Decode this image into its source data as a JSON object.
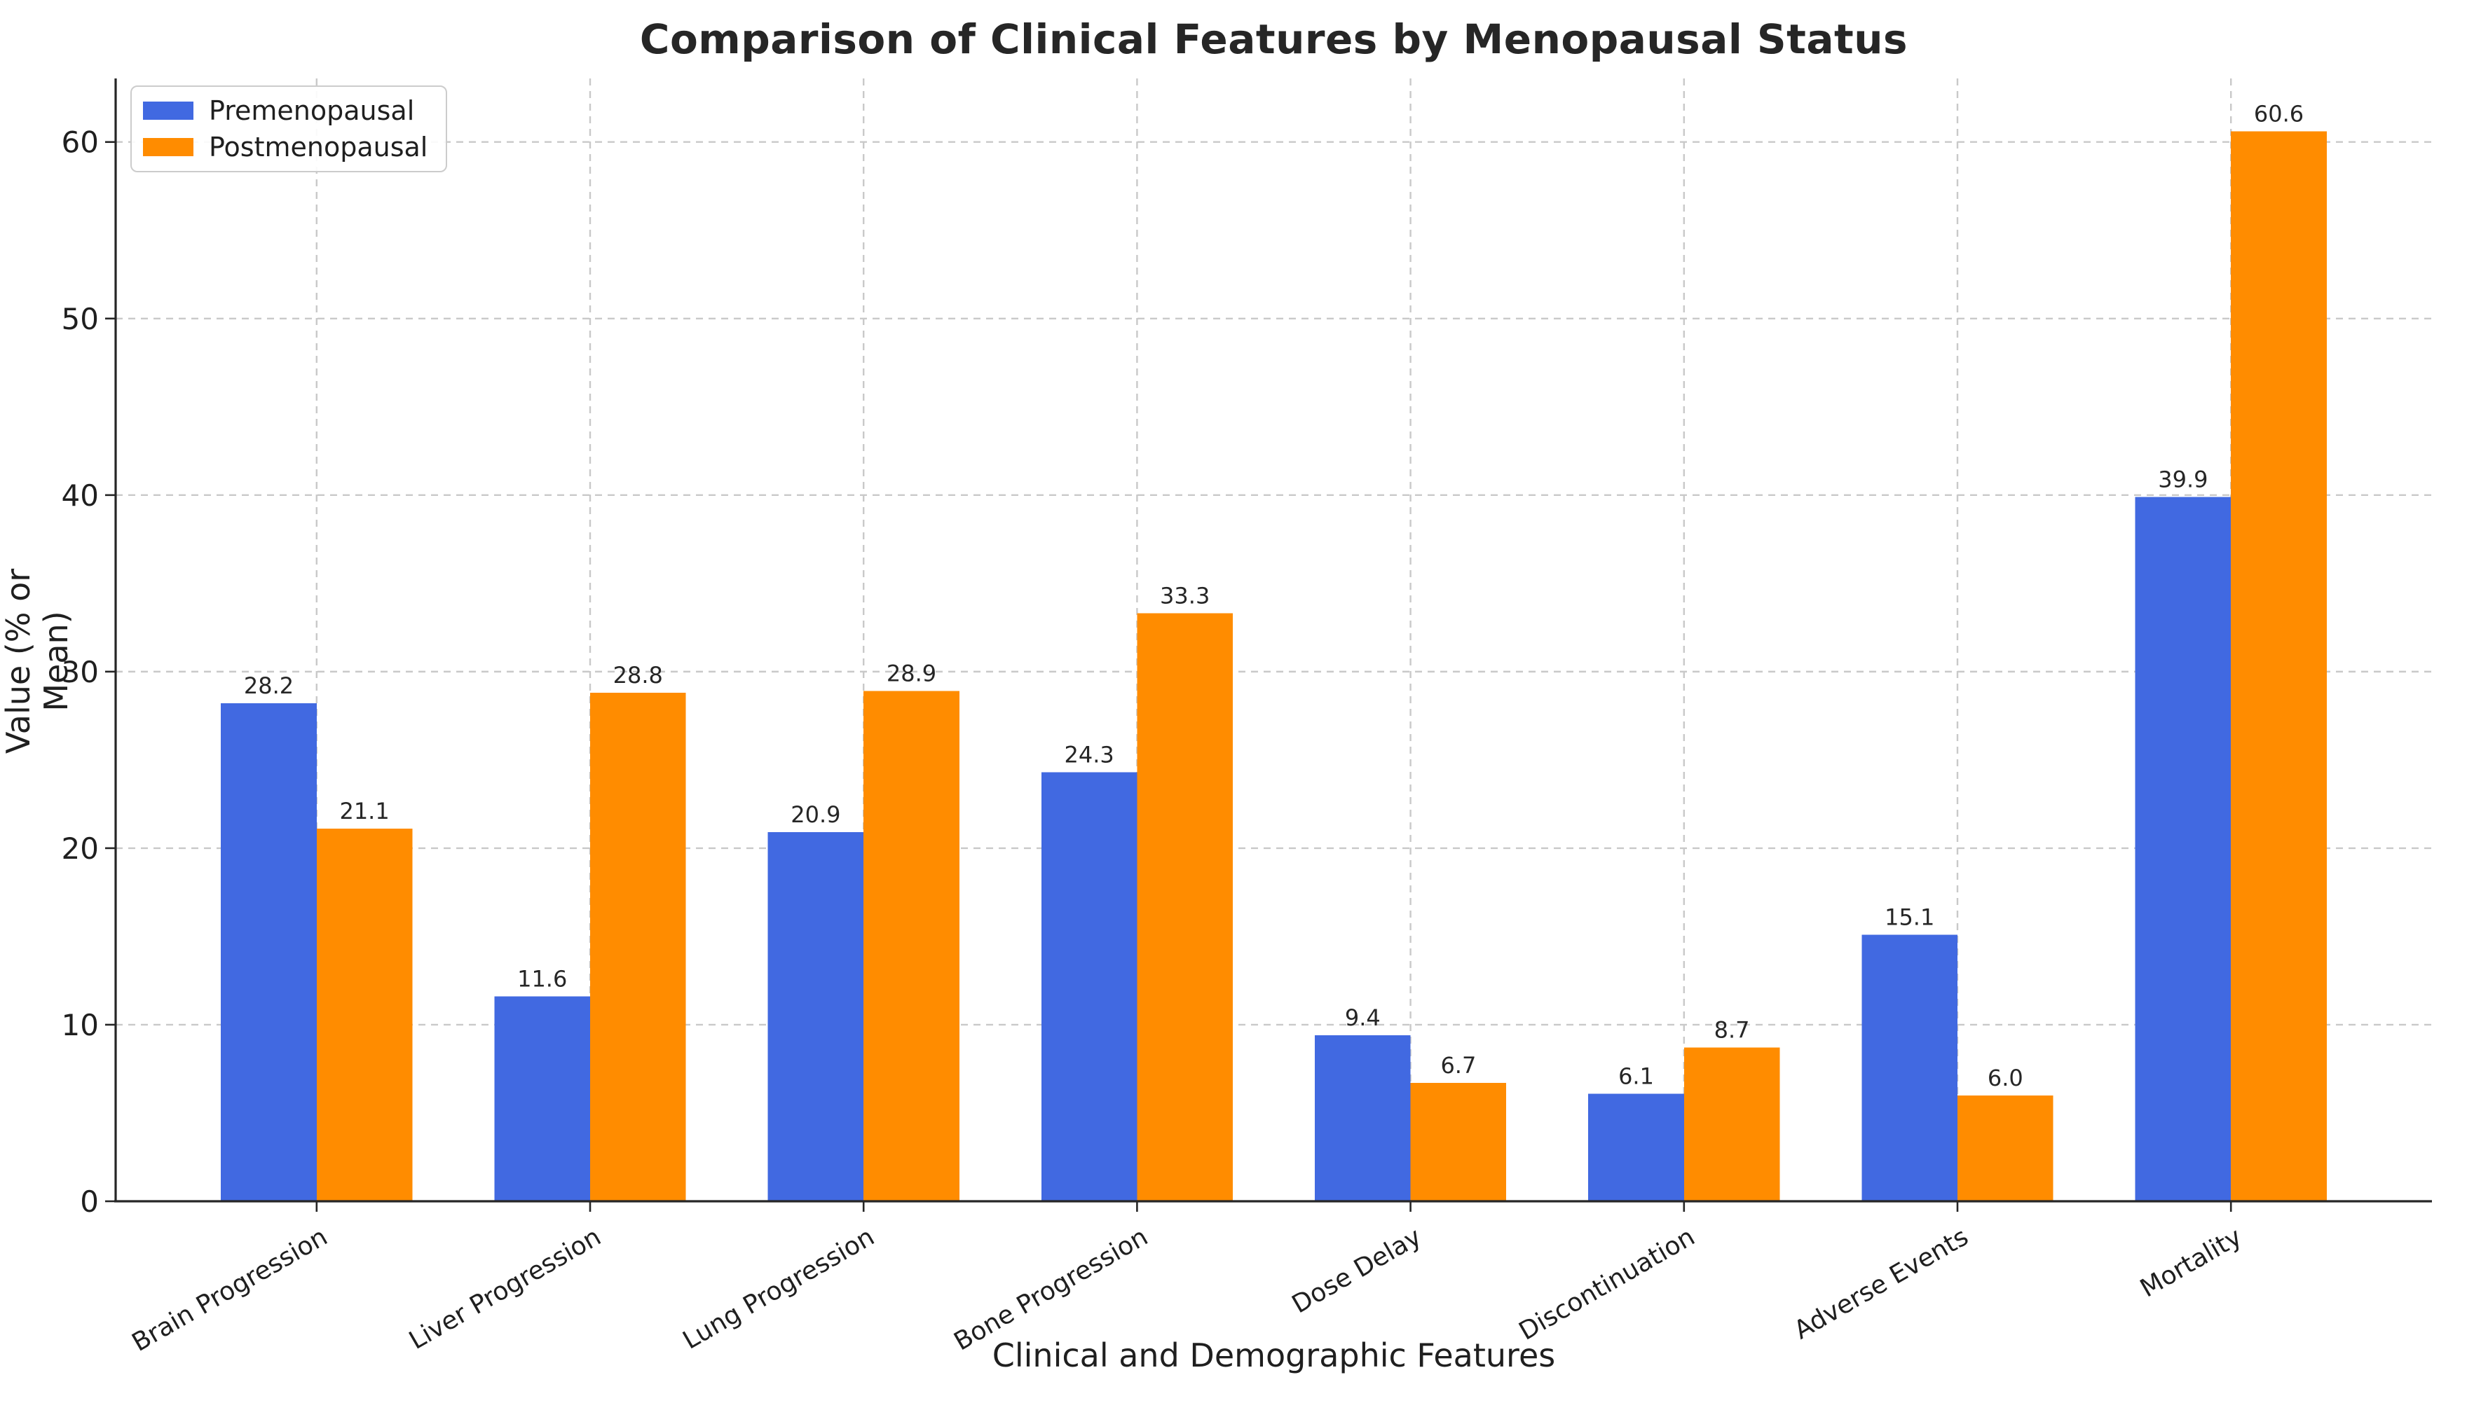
{
  "chart_data": {
    "type": "bar",
    "title": "Comparison of Clinical Features by Menopausal Status",
    "xlabel": "Clinical and Demographic Features",
    "ylabel": "Value (% or Mean)",
    "categories": [
      "Brain Progression",
      "Liver Progression",
      "Lung Progression",
      "Bone Progression",
      "Dose Delay",
      "Discontinuation",
      "Adverse Events",
      "Mortality"
    ],
    "series": [
      {
        "name": "Premenopausal",
        "color": "#4169E1",
        "values": [
          28.2,
          11.6,
          20.9,
          24.3,
          9.4,
          6.1,
          15.1,
          39.9
        ]
      },
      {
        "name": "Postmenopausal",
        "color": "#FF8C00",
        "values": [
          21.1,
          28.8,
          28.9,
          33.3,
          6.7,
          8.7,
          6.0,
          60.6
        ]
      }
    ],
    "yticks": [
      0,
      10,
      20,
      30,
      40,
      50,
      60
    ],
    "ylim": [
      0,
      63.6
    ],
    "xlim": [
      -0.735,
      7.735
    ],
    "bar_width": 0.35,
    "value_label_decimals": 1,
    "xtick_rotation_deg": 30,
    "grid": {
      "style": "dashed",
      "color": "#c9c9c9"
    },
    "legend_position": "upper left",
    "colors": {
      "grid": "#c9c9c9",
      "spine": "#262626",
      "text": "#1f1f1f",
      "background": "#ffffff"
    }
  }
}
